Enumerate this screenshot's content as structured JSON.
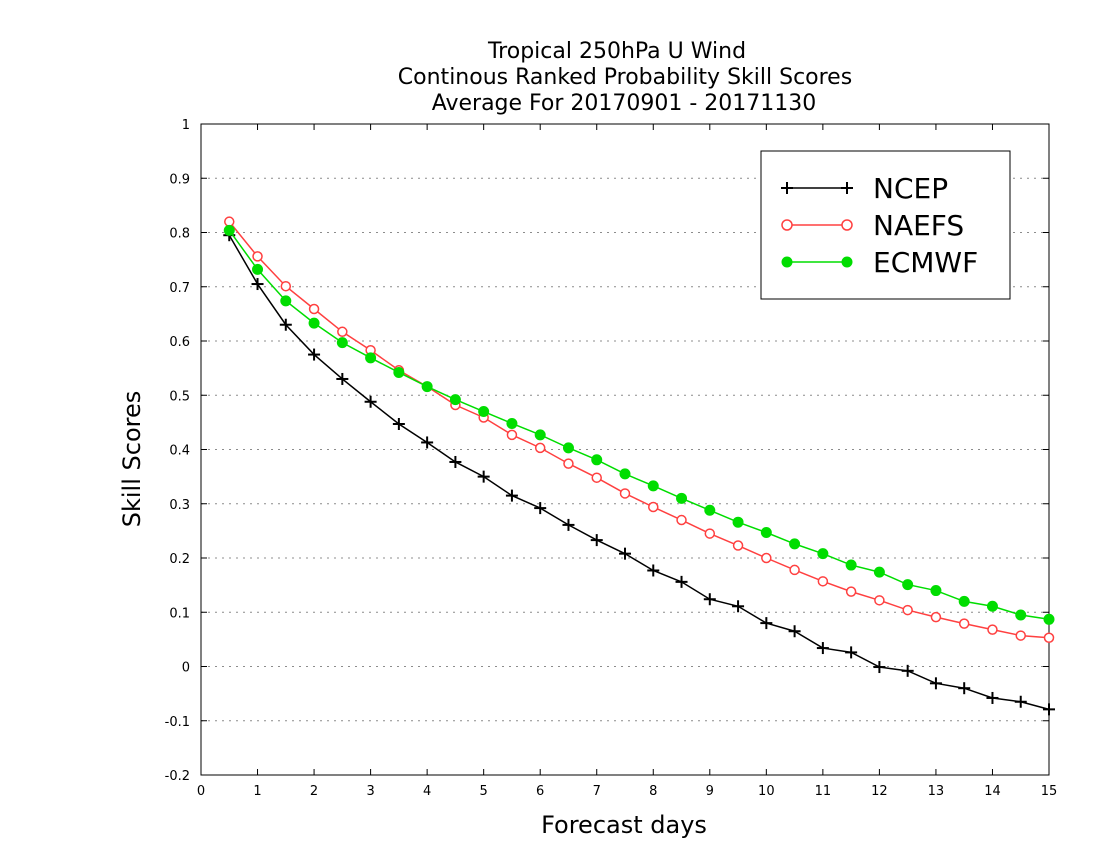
{
  "chart_data": {
    "type": "line",
    "title_lines": [
      "Tropical 250hPa U Wind",
      "Continous Ranked Probability Skill Scores",
      "Average For 20170901 - 20171130"
    ],
    "xlabel": "Forecast days",
    "ylabel": "Skill Scores",
    "xlim": [
      0,
      15
    ],
    "ylim": [
      -0.2,
      1
    ],
    "x_ticks": [
      0,
      1,
      2,
      3,
      4,
      5,
      6,
      7,
      8,
      9,
      10,
      11,
      12,
      13,
      14,
      15
    ],
    "x_tick_labels": [
      "0",
      "1",
      "2",
      "3",
      "4",
      "5",
      "6",
      "7",
      "8",
      "9",
      "10",
      "11",
      "12",
      "13",
      "14",
      "15"
    ],
    "y_ticks": [
      -0.2,
      -0.1,
      0,
      0.1,
      0.2,
      0.3,
      0.4,
      0.5,
      0.6,
      0.7,
      0.8,
      0.9,
      1
    ],
    "y_tick_labels": [
      "-0.2",
      "-0.1",
      "0",
      "0.1",
      "0.2",
      "0.3",
      "0.4",
      "0.5",
      "0.6",
      "0.7",
      "0.8",
      "0.9",
      "1"
    ],
    "grid": "horizontal dotted",
    "legend_position": "top-right",
    "x": [
      0.5,
      1,
      1.5,
      2,
      2.5,
      3,
      3.5,
      4,
      4.5,
      5,
      5.5,
      6,
      6.5,
      7,
      7.5,
      8,
      8.5,
      9,
      9.5,
      10,
      10.5,
      11,
      11.5,
      12,
      12.5,
      13,
      13.5,
      14,
      14.5,
      15
    ],
    "series": [
      {
        "name": "NCEP",
        "color": "#000000",
        "marker": "plus",
        "values": [
          0.795,
          0.705,
          0.63,
          0.575,
          0.53,
          0.488,
          0.447,
          0.413,
          0.377,
          0.35,
          0.315,
          0.292,
          0.261,
          0.233,
          0.208,
          0.177,
          0.156,
          0.124,
          0.111,
          0.08,
          0.065,
          0.034,
          0.026,
          -0.001,
          -0.008,
          -0.031,
          -0.04,
          -0.058,
          -0.065,
          -0.079
        ]
      },
      {
        "name": "NAEFS",
        "color": "#ff4040",
        "marker": "open-circle",
        "values": [
          0.82,
          0.756,
          0.701,
          0.659,
          0.617,
          0.583,
          0.546,
          0.516,
          0.482,
          0.459,
          0.427,
          0.403,
          0.374,
          0.348,
          0.319,
          0.294,
          0.27,
          0.245,
          0.223,
          0.2,
          0.178,
          0.157,
          0.138,
          0.122,
          0.104,
          0.091,
          0.079,
          0.068,
          0.057,
          0.053
        ]
      },
      {
        "name": "ECMWF",
        "color": "#00dd00",
        "marker": "filled-circle",
        "values": [
          0.804,
          0.732,
          0.674,
          0.633,
          0.597,
          0.569,
          0.542,
          0.516,
          0.492,
          0.47,
          0.448,
          0.427,
          0.403,
          0.381,
          0.355,
          0.333,
          0.31,
          0.288,
          0.266,
          0.247,
          0.226,
          0.208,
          0.187,
          0.174,
          0.151,
          0.14,
          0.12,
          0.111,
          0.095,
          0.087
        ]
      }
    ]
  }
}
